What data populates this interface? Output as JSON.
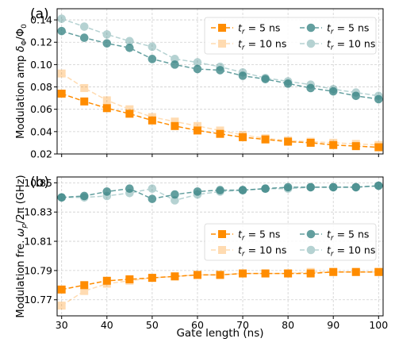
{
  "chart_data": [
    {
      "type": "line",
      "panel_label": "(a)",
      "ylabel": "Modulation amp δΦ/Φ0",
      "ylabel_parts": {
        "main": "Modulation amp ",
        "delta": "δ",
        "sub1": "Φ",
        "slash": "/Φ",
        "sub2": "0"
      },
      "xlabel": "",
      "xlim": [
        29,
        101
      ],
      "ylim": [
        0.02,
        0.15
      ],
      "yticks": [
        "0.02",
        "0.04",
        "0.06",
        "0.08",
        "0.10",
        "0.12",
        "0.14"
      ],
      "ytick_values": [
        0.02,
        0.04,
        0.06,
        0.08,
        0.1,
        0.12,
        0.14
      ],
      "xticks": [
        30,
        40,
        50,
        60,
        70,
        80,
        90,
        100
      ],
      "grid": true,
      "legend": "top-right",
      "x": [
        30,
        35,
        40,
        45,
        50,
        55,
        60,
        65,
        70,
        75,
        80,
        85,
        90,
        95,
        100
      ],
      "series": [
        {
          "name": "t_r = 5 ns",
          "legend_t": "t",
          "legend_sub": "r",
          "legend_rest": " = 5 ns",
          "marker": "square",
          "color": "#ff8c00",
          "opacity": 1.0,
          "values": [
            0.074,
            0.067,
            0.061,
            0.056,
            0.05,
            0.045,
            0.041,
            0.038,
            0.035,
            0.033,
            0.031,
            0.03,
            0.028,
            0.027,
            0.026
          ]
        },
        {
          "name": "t_r = 10 ns",
          "legend_t": "t",
          "legend_sub": "r",
          "legend_rest": " = 10 ns",
          "marker": "square",
          "color": "#ff8c00",
          "opacity": 0.3,
          "values": [
            0.092,
            0.079,
            0.068,
            0.06,
            0.053,
            0.049,
            0.045,
            0.041,
            0.037,
            0.034,
            0.032,
            0.031,
            0.03,
            0.029,
            0.028
          ]
        },
        {
          "name": "t_r = 5 ns",
          "legend_t": "t",
          "legend_sub": "r",
          "legend_rest": " = 5 ns",
          "marker": "circle",
          "color": "#2f7f7f",
          "opacity": 0.75,
          "values": [
            0.13,
            0.124,
            0.119,
            0.115,
            0.105,
            0.1,
            0.096,
            0.095,
            0.09,
            0.087,
            0.083,
            0.079,
            0.076,
            0.072,
            0.069
          ]
        },
        {
          "name": "t_r = 10 ns",
          "legend_t": "t",
          "legend_sub": "r",
          "legend_rest": " = 10 ns",
          "marker": "circle",
          "color": "#2f7f7f",
          "opacity": 0.35,
          "values": [
            0.141,
            0.134,
            0.127,
            0.121,
            0.116,
            0.105,
            0.102,
            0.098,
            0.093,
            0.088,
            0.085,
            0.082,
            0.078,
            0.075,
            0.072
          ]
        }
      ]
    },
    {
      "type": "line",
      "panel_label": "(b)",
      "ylabel": "Modulation fre. ωp/2π (GHz)",
      "ylabel_parts": {
        "main": "Modulation fre. ",
        "omega": "ω",
        "sub": "p",
        "rest": "/2π (GHz)"
      },
      "xlabel": "Gate length (ns)",
      "xlim": [
        29,
        101
      ],
      "ylim": [
        10.759,
        10.854
      ],
      "yticks": [
        "10.77",
        "10.79",
        "10.81",
        "10.83",
        "10.85"
      ],
      "ytick_values": [
        10.77,
        10.79,
        10.81,
        10.83,
        10.85
      ],
      "xticks": [
        30,
        40,
        50,
        60,
        70,
        80,
        90,
        100
      ],
      "grid": true,
      "legend": "center-right",
      "x": [
        30,
        35,
        40,
        45,
        50,
        55,
        60,
        65,
        70,
        75,
        80,
        85,
        90,
        95,
        100
      ],
      "series": [
        {
          "name": "t_r = 5 ns",
          "legend_t": "t",
          "legend_sub": "r",
          "legend_rest": " = 5 ns",
          "marker": "square",
          "color": "#ff8c00",
          "opacity": 1.0,
          "values": [
            10.777,
            10.78,
            10.783,
            10.784,
            10.785,
            10.786,
            10.787,
            10.787,
            10.788,
            10.788,
            10.788,
            10.788,
            10.789,
            10.789,
            10.789
          ]
        },
        {
          "name": "t_r = 10 ns",
          "legend_t": "t",
          "legend_sub": "r",
          "legend_rest": " = 10 ns",
          "marker": "square",
          "color": "#ff8c00",
          "opacity": 0.3,
          "values": [
            10.766,
            10.776,
            10.781,
            10.783,
            10.785,
            10.786,
            10.787,
            10.787,
            10.788,
            10.788,
            10.788,
            10.789,
            10.789,
            10.789,
            10.789
          ]
        },
        {
          "name": "t_r = 5 ns",
          "legend_t": "t",
          "legend_sub": "r",
          "legend_rest": " = 5 ns",
          "marker": "circle",
          "color": "#2f7f7f",
          "opacity": 0.75,
          "values": [
            10.84,
            10.841,
            10.844,
            10.846,
            10.839,
            10.842,
            10.844,
            10.845,
            10.845,
            10.846,
            10.847,
            10.847,
            10.847,
            10.847,
            10.848
          ]
        },
        {
          "name": "t_r = 10 ns",
          "legend_t": "t",
          "legend_sub": "r",
          "legend_rest": " = 10 ns",
          "marker": "circle",
          "color": "#2f7f7f",
          "opacity": 0.35,
          "values": [
            10.84,
            10.84,
            10.841,
            10.843,
            10.846,
            10.838,
            10.842,
            10.844,
            10.845,
            10.846,
            10.846,
            10.847,
            10.847,
            10.847,
            10.848
          ]
        }
      ]
    }
  ]
}
